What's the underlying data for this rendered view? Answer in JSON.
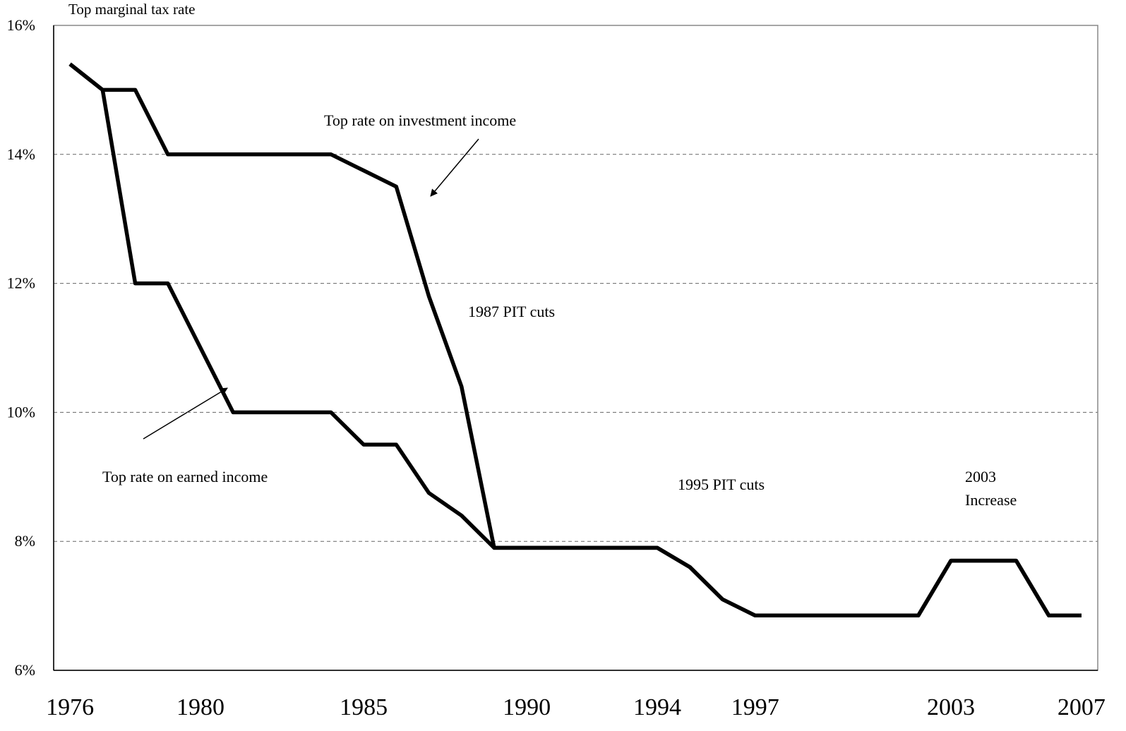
{
  "chart_data": {
    "type": "line",
    "y_label": "Top marginal tax rate",
    "x": [
      1976,
      1977,
      1978,
      1979,
      1980,
      1981,
      1982,
      1983,
      1984,
      1985,
      1986,
      1987,
      1988,
      1989,
      1990,
      1991,
      1992,
      1993,
      1994,
      1995,
      1996,
      1997,
      1998,
      1999,
      2000,
      2001,
      2002,
      2003,
      2004,
      2005,
      2006,
      2007
    ],
    "series": [
      {
        "name": "Top rate on investment income",
        "color": "#000000",
        "values": [
          15.4,
          15,
          15,
          14,
          14,
          14,
          14,
          14,
          14,
          13.75,
          13.5,
          11.8,
          10.4,
          7.9,
          7.9,
          7.9,
          7.9,
          7.9,
          7.9,
          7.6,
          7.1,
          6.85,
          6.85,
          6.85,
          6.85,
          6.85,
          6.85,
          7.7,
          7.7,
          7.7,
          6.85,
          6.85
        ]
      },
      {
        "name": "Top rate on earned income",
        "color": "#000000",
        "values": [
          15.4,
          15,
          12,
          12,
          11,
          10,
          10,
          10,
          10,
          9.5,
          9.5,
          8.75,
          8.4,
          7.9,
          7.9,
          7.9,
          7.9,
          7.9,
          7.9,
          7.6,
          7.1,
          6.85,
          6.85,
          6.85,
          6.85,
          6.85,
          6.85,
          7.7,
          7.7,
          7.7,
          6.85,
          6.85
        ]
      }
    ],
    "annotations": [
      "1987 PIT cuts",
      "1995 PIT cuts",
      "2003\nIncrease"
    ],
    "xlim": [
      1975.5,
      2007.5
    ],
    "xticks": [
      1976,
      1980,
      1985,
      1990,
      1994,
      1997,
      2003,
      2007
    ],
    "ylim": [
      6,
      16
    ],
    "yticks": [
      {
        "value": 6,
        "label": "6%"
      },
      {
        "value": 8,
        "label": "8%"
      },
      {
        "value": 10,
        "label": "10%"
      },
      {
        "value": 12,
        "label": "12%"
      },
      {
        "value": 14,
        "label": "14%"
      },
      {
        "value": 16,
        "label": "16%"
      }
    ],
    "grid": true
  }
}
